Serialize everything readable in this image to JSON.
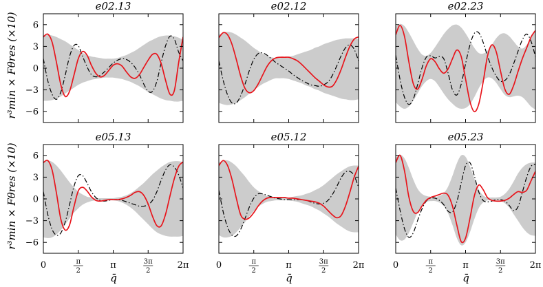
{
  "chart_data": {
    "type": "line",
    "y_axis_label": "r³min × Fθres (×10)",
    "x_axis_label": "q̄",
    "y_ticks": [
      "6",
      "3",
      "0",
      "−3",
      "−6"
    ],
    "x_ticks": [
      "0",
      "π/2",
      "π",
      "3π/2",
      "2π"
    ],
    "ylim": [
      -7.5,
      7.5
    ],
    "xlim": [
      0,
      6.2832
    ],
    "band_color": "#cccccc",
    "red_color": "#e8141b",
    "black_color": "#000000",
    "panels": [
      {
        "title": "e02.13",
        "x": [
          0,
          0.1963,
          0.3927,
          0.589,
          0.7854,
          0.9817,
          1.1781,
          1.3744,
          1.5708,
          1.7671,
          1.9635,
          2.1598,
          2.3562,
          2.5525,
          2.7489,
          2.9452,
          3.1416,
          3.3379,
          3.5343,
          3.7306,
          3.927,
          4.1233,
          4.3197,
          4.516,
          4.7124,
          4.9087,
          5.1051,
          5.3014,
          5.4978,
          5.6941,
          5.8905,
          6.0868,
          6.2832
        ],
        "band_upper": [
          4.5,
          4.6,
          4.5,
          4.3,
          4.0,
          3.7,
          3.3,
          2.9,
          2.5,
          2.1,
          1.8,
          1.6,
          1.5,
          1.4,
          1.3,
          1.3,
          1.3,
          1.4,
          1.6,
          1.8,
          2.1,
          2.4,
          2.8,
          3.2,
          3.6,
          3.9,
          4.2,
          4.4,
          4.5,
          4.5,
          4.4,
          4.2,
          3.9
        ],
        "band_lower": [
          -4.5,
          -4.5,
          -4.4,
          -4.2,
          -3.9,
          -3.5,
          -3.1,
          -2.7,
          -2.3,
          -2.0,
          -1.8,
          -1.6,
          -1.5,
          -1.4,
          -1.3,
          -1.3,
          -1.3,
          -1.4,
          -1.5,
          -1.7,
          -1.9,
          -2.2,
          -2.5,
          -2.9,
          -3.3,
          -3.6,
          -3.9,
          -4.2,
          -4.4,
          -4.5,
          -4.6,
          -4.6,
          -4.5
        ],
        "red": [
          4.3,
          4.7,
          3.6,
          0.8,
          -2.3,
          -3.9,
          -3.2,
          -1.0,
          1.3,
          2.3,
          1.8,
          0.4,
          -0.7,
          -1.2,
          -1.0,
          -0.3,
          0.4,
          0.6,
          0.3,
          -0.5,
          -1.2,
          -1.4,
          -0.9,
          0.1,
          1.1,
          1.9,
          1.9,
          0.6,
          -1.7,
          -3.6,
          -3.1,
          0.8,
          4.3
        ],
        "black": [
          1.3,
          -1.7,
          -3.6,
          -4.3,
          -3.3,
          -1.0,
          1.6,
          3.1,
          3.1,
          1.6,
          0.2,
          -0.9,
          -1.2,
          -1.0,
          -0.5,
          0.1,
          0.7,
          1.1,
          1.3,
          1.2,
          0.8,
          0.1,
          -0.9,
          -2.2,
          -3.2,
          -3.2,
          -1.8,
          0.8,
          3.1,
          4.4,
          4.0,
          2.2,
          1.0
        ]
      },
      {
        "title": "e02.12",
        "x": [
          0,
          0.1963,
          0.3927,
          0.589,
          0.7854,
          0.9817,
          1.1781,
          1.3744,
          1.5708,
          1.7671,
          1.9635,
          2.1598,
          2.3562,
          2.5525,
          2.7489,
          2.9452,
          3.1416,
          3.3379,
          3.5343,
          3.7306,
          3.927,
          4.1233,
          4.3197,
          4.516,
          4.7124,
          4.9087,
          5.1051,
          5.3014,
          5.4978,
          5.6941,
          5.8905,
          6.0868,
          6.2832
        ],
        "band_upper": [
          4.6,
          4.9,
          5.0,
          4.9,
          4.6,
          4.2,
          3.8,
          3.3,
          2.8,
          2.4,
          2.0,
          1.7,
          1.5,
          1.4,
          1.4,
          1.5,
          1.6,
          1.7,
          1.9,
          2.1,
          2.3,
          2.5,
          2.8,
          3.0,
          3.3,
          3.5,
          3.7,
          3.9,
          4.0,
          4.1,
          4.1,
          4.1,
          4.0
        ],
        "band_lower": [
          -4.8,
          -5.0,
          -5.1,
          -5.0,
          -4.8,
          -4.4,
          -4.0,
          -3.5,
          -3.0,
          -2.6,
          -2.2,
          -1.9,
          -1.6,
          -1.4,
          -1.4,
          -1.4,
          -1.5,
          -1.7,
          -1.9,
          -2.1,
          -2.4,
          -2.6,
          -2.9,
          -3.1,
          -3.4,
          -3.6,
          -3.8,
          -4.0,
          -4.2,
          -4.3,
          -4.4,
          -4.4,
          -4.3
        ],
        "red": [
          4.2,
          4.9,
          4.6,
          3.3,
          1.2,
          -1.1,
          -2.8,
          -3.4,
          -3.1,
          -2.2,
          -1.0,
          0.2,
          1.0,
          1.4,
          1.5,
          1.5,
          1.5,
          1.3,
          1.0,
          0.5,
          -0.1,
          -0.7,
          -1.3,
          -1.8,
          -2.3,
          -2.6,
          -2.5,
          -1.6,
          -0.2,
          1.5,
          3.0,
          4.0,
          4.3
        ],
        "black": [
          1.0,
          -1.7,
          -3.7,
          -4.8,
          -4.8,
          -3.8,
          -2.2,
          -0.3,
          1.2,
          2.0,
          2.1,
          1.8,
          1.3,
          0.8,
          0.4,
          0.0,
          -0.4,
          -0.9,
          -1.3,
          -1.7,
          -2.0,
          -2.3,
          -2.4,
          -2.5,
          -2.3,
          -1.9,
          -1.0,
          0.3,
          1.7,
          2.8,
          3.2,
          2.6,
          1.0
        ]
      },
      {
        "title": "e02.23",
        "x": [
          0,
          0.1963,
          0.3927,
          0.589,
          0.7854,
          0.9817,
          1.1781,
          1.3744,
          1.5708,
          1.7671,
          1.9635,
          2.1598,
          2.3562,
          2.5525,
          2.7489,
          2.9452,
          3.1416,
          3.3379,
          3.5343,
          3.7306,
          3.927,
          4.1233,
          4.3197,
          4.516,
          4.7124,
          4.9087,
          5.1051,
          5.3014,
          5.4978,
          5.6941,
          5.8905,
          6.0868,
          6.2832
        ],
        "band_upper": [
          5.7,
          6.1,
          5.8,
          4.9,
          3.8,
          2.7,
          1.9,
          1.7,
          2.1,
          2.9,
          3.8,
          4.7,
          5.4,
          5.9,
          6.0,
          5.6,
          4.8,
          3.8,
          2.8,
          2.1,
          2.0,
          2.4,
          3.2,
          4.1,
          4.7,
          4.8,
          4.4,
          3.7,
          3.0,
          2.7,
          3.2,
          4.3,
          5.2
        ],
        "band_lower": [
          -4.7,
          -5.3,
          -5.6,
          -5.3,
          -4.5,
          -3.5,
          -2.5,
          -1.8,
          -1.5,
          -1.8,
          -2.6,
          -3.5,
          -4.3,
          -4.9,
          -5.4,
          -5.6,
          -5.5,
          -5.0,
          -4.0,
          -2.8,
          -1.8,
          -1.3,
          -1.4,
          -2.0,
          -2.9,
          -3.7,
          -4.0,
          -3.9,
          -3.8,
          -4.0,
          -4.6,
          -5.3,
          -5.7
        ],
        "red": [
          4.6,
          5.9,
          4.4,
          0.9,
          -2.1,
          -2.9,
          -1.6,
          0.3,
          1.3,
          0.9,
          -0.1,
          -0.7,
          -0.1,
          1.3,
          2.5,
          1.6,
          -1.5,
          -4.6,
          -6.0,
          -5.0,
          -2.0,
          1.6,
          3.2,
          2.3,
          -0.4,
          -2.9,
          -3.6,
          -2.4,
          -0.5,
          1.3,
          2.8,
          4.3,
          5.2
        ],
        "black": [
          1.8,
          -1.6,
          -4.0,
          -5.0,
          -4.3,
          -2.3,
          0.0,
          1.5,
          1.7,
          1.4,
          1.6,
          1.3,
          -0.7,
          -3.0,
          -3.7,
          -2.2,
          0.6,
          3.2,
          4.8,
          4.9,
          3.6,
          1.7,
          0.1,
          -1.1,
          -1.8,
          -1.7,
          -0.9,
          0.6,
          2.3,
          3.9,
          4.7,
          3.7,
          1.6
        ]
      },
      {
        "title": "e05.13",
        "x": [
          0,
          0.1963,
          0.3927,
          0.589,
          0.7854,
          0.9817,
          1.1781,
          1.3744,
          1.5708,
          1.7671,
          1.9635,
          2.1598,
          2.3562,
          2.5525,
          2.7489,
          2.9452,
          3.1416,
          3.3379,
          3.5343,
          3.7306,
          3.927,
          4.1233,
          4.3197,
          4.516,
          4.7124,
          4.9087,
          5.1051,
          5.3014,
          5.4978,
          5.6941,
          5.8905,
          6.0868,
          6.2832
        ],
        "band_upper": [
          5.1,
          5.3,
          5.1,
          4.6,
          3.9,
          3.1,
          2.3,
          1.6,
          1.0,
          0.6,
          0.3,
          0.2,
          0.1,
          0.1,
          0.1,
          0.1,
          0.1,
          0.2,
          0.3,
          0.5,
          0.8,
          1.2,
          1.7,
          2.2,
          2.8,
          3.4,
          3.9,
          4.4,
          4.8,
          5.1,
          5.2,
          5.2,
          5.1
        ],
        "band_lower": [
          -5.3,
          -5.4,
          -5.3,
          -4.9,
          -4.3,
          -3.5,
          -2.7,
          -1.9,
          -1.3,
          -0.8,
          -0.5,
          -0.3,
          -0.2,
          -0.2,
          -0.2,
          -0.2,
          -0.2,
          -0.3,
          -0.5,
          -0.8,
          -1.2,
          -1.7,
          -2.3,
          -2.9,
          -3.5,
          -4.1,
          -4.6,
          -4.9,
          -5.1,
          -5.2,
          -5.2,
          -5.2,
          -5.1
        ],
        "red": [
          5.0,
          5.3,
          4.0,
          0.8,
          -2.8,
          -4.3,
          -3.6,
          -1.1,
          1.1,
          1.6,
          1.1,
          0.3,
          -0.2,
          -0.3,
          -0.2,
          -0.1,
          -0.1,
          -0.1,
          0.0,
          0.2,
          0.5,
          0.9,
          1.0,
          0.5,
          -0.7,
          -2.4,
          -3.7,
          -3.7,
          -2.1,
          0.4,
          2.8,
          4.5,
          5.1
        ],
        "black": [
          1.0,
          -2.1,
          -4.2,
          -5.0,
          -4.7,
          -3.2,
          -0.8,
          1.7,
          3.2,
          3.2,
          2.2,
          1.0,
          0.2,
          -0.2,
          -0.3,
          -0.2,
          -0.1,
          -0.1,
          -0.2,
          -0.4,
          -0.6,
          -0.8,
          -1.0,
          -1.0,
          -0.8,
          -0.2,
          1.0,
          2.6,
          4.0,
          4.7,
          4.4,
          3.3,
          1.5
        ]
      },
      {
        "title": "e05.12",
        "x": [
          0,
          0.1963,
          0.3927,
          0.589,
          0.7854,
          0.9817,
          1.1781,
          1.3744,
          1.5708,
          1.7671,
          1.9635,
          2.1598,
          2.3562,
          2.5525,
          2.7489,
          2.9452,
          3.1416,
          3.3379,
          3.5343,
          3.7306,
          3.927,
          4.1233,
          4.3197,
          4.516,
          4.7124,
          4.9087,
          5.1051,
          5.3014,
          5.4978,
          5.6941,
          5.8905,
          6.0868,
          6.2832
        ],
        "band_upper": [
          5.0,
          5.3,
          5.3,
          5.0,
          4.5,
          3.8,
          3.1,
          2.3,
          1.6,
          1.1,
          0.7,
          0.4,
          0.3,
          0.2,
          0.2,
          0.2,
          0.2,
          0.3,
          0.4,
          0.5,
          0.7,
          0.9,
          1.2,
          1.5,
          1.9,
          2.4,
          2.9,
          3.4,
          3.8,
          4.2,
          4.5,
          4.6,
          4.6
        ],
        "band_lower": [
          -5.0,
          -5.3,
          -5.3,
          -5.1,
          -4.6,
          -3.9,
          -3.2,
          -2.4,
          -1.7,
          -1.1,
          -0.7,
          -0.4,
          -0.3,
          -0.2,
          -0.2,
          -0.2,
          -0.2,
          -0.3,
          -0.4,
          -0.6,
          -0.8,
          -1.0,
          -1.3,
          -1.6,
          -2.0,
          -2.4,
          -2.9,
          -3.4,
          -3.8,
          -4.2,
          -4.5,
          -4.6,
          -4.6
        ],
        "red": [
          4.6,
          5.3,
          4.6,
          2.7,
          0.1,
          -2.2,
          -2.8,
          -2.6,
          -1.9,
          -1.0,
          -0.3,
          0.1,
          0.2,
          0.2,
          0.2,
          0.2,
          0.1,
          0.1,
          0.0,
          -0.1,
          -0.2,
          -0.3,
          -0.4,
          -0.6,
          -1.0,
          -1.6,
          -2.2,
          -2.6,
          -2.3,
          -1.0,
          0.9,
          3.0,
          4.5
        ],
        "black": [
          1.2,
          -1.8,
          -3.9,
          -5.0,
          -5.1,
          -4.2,
          -2.7,
          -1.1,
          0.1,
          0.7,
          0.7,
          0.5,
          0.3,
          0.1,
          0.0,
          -0.1,
          -0.1,
          -0.1,
          -0.1,
          -0.1,
          -0.2,
          -0.4,
          -0.6,
          -0.7,
          -0.6,
          -0.2,
          0.6,
          1.7,
          2.9,
          3.7,
          3.8,
          3.2,
          1.6
        ]
      },
      {
        "title": "e05.23",
        "x": [
          0,
          0.1963,
          0.3927,
          0.589,
          0.7854,
          0.9817,
          1.1781,
          1.3744,
          1.5708,
          1.7671,
          1.9635,
          2.1598,
          2.3562,
          2.5525,
          2.7489,
          2.9452,
          3.1416,
          3.3379,
          3.5343,
          3.7306,
          3.927,
          4.1233,
          4.3197,
          4.516,
          4.7124,
          4.9087,
          5.1051,
          5.3014,
          5.4978,
          5.6941,
          5.8905,
          6.0868,
          6.2832
        ],
        "band_upper": [
          5.7,
          6.1,
          5.6,
          4.3,
          2.7,
          1.4,
          0.7,
          0.4,
          0.3,
          0.3,
          0.4,
          0.8,
          1.7,
          3.2,
          4.9,
          6.0,
          5.8,
          4.5,
          2.8,
          1.3,
          0.5,
          0.2,
          0.2,
          0.2,
          0.3,
          0.7,
          1.4,
          2.4,
          3.5,
          4.3,
          4.8,
          5.0,
          5.0
        ],
        "band_lower": [
          -4.9,
          -5.7,
          -5.6,
          -4.7,
          -3.3,
          -1.9,
          -0.9,
          -0.4,
          -0.3,
          -0.3,
          -0.5,
          -1.0,
          -2.0,
          -3.6,
          -5.4,
          -6.4,
          -6.0,
          -4.6,
          -2.8,
          -1.3,
          -0.5,
          -0.2,
          -0.2,
          -0.2,
          -0.3,
          -0.6,
          -1.2,
          -2.1,
          -3.0,
          -3.9,
          -4.6,
          -5.0,
          -5.1
        ],
        "red": [
          5.0,
          6.0,
          3.9,
          0.3,
          -1.7,
          -1.9,
          -1.0,
          -0.2,
          0.2,
          0.4,
          0.6,
          0.8,
          0.5,
          -1.0,
          -3.6,
          -5.9,
          -5.4,
          -2.7,
          0.4,
          1.9,
          1.3,
          0.2,
          -0.2,
          -0.3,
          -0.3,
          -0.2,
          0.1,
          0.6,
          1.0,
          0.9,
          1.2,
          2.5,
          3.8
        ],
        "black": [
          1.5,
          -1.6,
          -4.1,
          -5.3,
          -4.7,
          -3.0,
          -1.4,
          -0.3,
          0.1,
          0.1,
          -0.2,
          -0.8,
          -1.7,
          -1.8,
          -0.4,
          2.2,
          4.6,
          5.0,
          3.2,
          1.0,
          -0.2,
          -0.4,
          -0.3,
          -0.1,
          -0.1,
          -0.3,
          -0.9,
          -1.6,
          -1.1,
          0.9,
          3.0,
          4.5,
          4.8
        ]
      }
    ]
  }
}
